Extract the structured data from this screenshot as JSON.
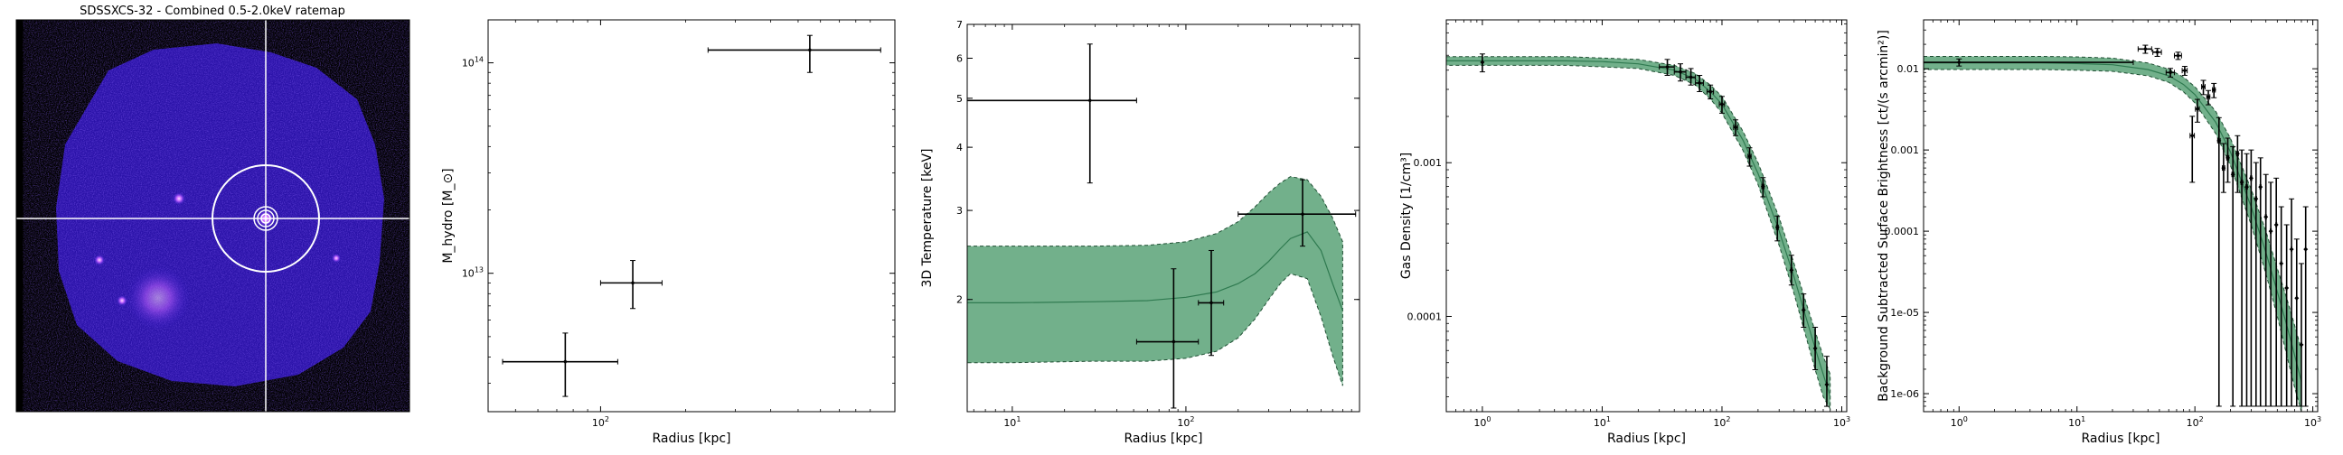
{
  "ratemap": {
    "title": "SDSSXCS-32 - Combined 0.5-2.0keV ratemap",
    "colors": {
      "background": "#000000",
      "emission": "#3a1fd6",
      "crosshair": "#ffffff"
    }
  },
  "chart_data": [
    {
      "type": "scatter",
      "title": "",
      "xlabel": "Radius [kpc]",
      "ylabel": "M_hydro [M_⊙]",
      "xscale": "log",
      "yscale": "log",
      "xlim": [
        40,
        1100
      ],
      "ylim": [
        2200000000000.0,
        160000000000000.0
      ],
      "x_ticks": [
        {
          "v": 100,
          "label": "10^2"
        }
      ],
      "y_ticks": [
        {
          "v": 10000000000000.0,
          "label": "10^13"
        },
        {
          "v": 100000000000000.0,
          "label": "10^14"
        }
      ],
      "points": [
        {
          "x": 75,
          "xlo": 45,
          "xhi": 115,
          "y": 3800000000000.0,
          "ylo": 2600000000000.0,
          "yhi": 5200000000000.0
        },
        {
          "x": 130,
          "xlo": 100,
          "xhi": 165,
          "y": 9000000000000.0,
          "ylo": 6800000000000.0,
          "yhi": 11500000000000.0
        },
        {
          "x": 550,
          "xlo": 240,
          "xhi": 980,
          "y": 115000000000000.0,
          "ylo": 90000000000000.0,
          "yhi": 135000000000000.0
        }
      ]
    },
    {
      "type": "scatter",
      "title": "",
      "xlabel": "Radius [kpc]",
      "ylabel": "3D Temperature [keV]",
      "xscale": "log",
      "yscale": "log",
      "xlim": [
        5.5,
        1000
      ],
      "ylim": [
        1.2,
        7
      ],
      "x_ticks": [
        {
          "v": 10,
          "label": "10^1"
        },
        {
          "v": 100,
          "label": "10^2"
        }
      ],
      "y_ticks": [
        {
          "v": 2,
          "label": "2"
        },
        {
          "v": 3,
          "label": "3"
        },
        {
          "v": 4,
          "label": "4"
        },
        {
          "v": 5,
          "label": "5"
        },
        {
          "v": 6,
          "label": "6"
        },
        {
          "v": 7,
          "label": "7"
        }
      ],
      "model": {
        "color": "#6aac85",
        "x": [
          5.5,
          10,
          30,
          60,
          100,
          150,
          200,
          250,
          300,
          350,
          400,
          500,
          600,
          700,
          800
        ],
        "y": [
          1.97,
          1.97,
          1.98,
          1.99,
          2.02,
          2.07,
          2.15,
          2.25,
          2.38,
          2.52,
          2.64,
          2.72,
          2.5,
          2.15,
          1.9
        ],
        "ylo": [
          1.5,
          1.5,
          1.51,
          1.51,
          1.53,
          1.58,
          1.68,
          1.83,
          2.0,
          2.15,
          2.25,
          2.2,
          1.85,
          1.55,
          1.35
        ],
        "yhi": [
          2.55,
          2.55,
          2.55,
          2.56,
          2.6,
          2.7,
          2.85,
          3.05,
          3.25,
          3.4,
          3.5,
          3.45,
          3.2,
          2.9,
          2.6
        ]
      },
      "points": [
        {
          "x": 28,
          "xlo": 5.5,
          "xhi": 52,
          "y": 4.95,
          "ylo": 3.4,
          "yhi": 6.4
        },
        {
          "x": 85,
          "xlo": 52,
          "xhi": 118,
          "y": 1.65,
          "ylo": 1.22,
          "yhi": 2.3
        },
        {
          "x": 140,
          "xlo": 118,
          "xhi": 165,
          "y": 1.97,
          "ylo": 1.55,
          "yhi": 2.5
        },
        {
          "x": 470,
          "xlo": 200,
          "xhi": 950,
          "y": 2.95,
          "ylo": 2.55,
          "yhi": 3.45
        }
      ]
    },
    {
      "type": "scatter",
      "title": "",
      "xlabel": "Radius [kpc]",
      "ylabel": "Gas Density [1/cm³]",
      "xscale": "log",
      "yscale": "log",
      "xlim": [
        0.5,
        1100
      ],
      "ylim": [
        2.4e-05,
        0.0085
      ],
      "x_ticks": [
        {
          "v": 1,
          "label": "10^0"
        },
        {
          "v": 10,
          "label": "10^1"
        },
        {
          "v": 100,
          "label": "10^2"
        },
        {
          "v": 1000,
          "label": "10^3"
        }
      ],
      "y_ticks": [
        {
          "v": 0.0001,
          "label": "0.0001"
        },
        {
          "v": 0.001,
          "label": "0.001"
        }
      ],
      "model": {
        "color": "#6aac85",
        "x": [
          0.5,
          1,
          5,
          10,
          20,
          40,
          60,
          80,
          100,
          150,
          200,
          300,
          400,
          500,
          600,
          700,
          800
        ],
        "y": [
          0.0046,
          0.0046,
          0.0046,
          0.00455,
          0.0044,
          0.004,
          0.0035,
          0.0029,
          0.0024,
          0.0014,
          0.00085,
          0.00036,
          0.00018,
          0.0001,
          6.2e-05,
          4.2e-05,
          3e-05
        ],
        "ylo": [
          0.0043,
          0.0043,
          0.0043,
          0.0042,
          0.0041,
          0.0037,
          0.0032,
          0.0026,
          0.0021,
          0.0012,
          0.00072,
          0.00029,
          0.00014,
          7.5e-05,
          4.5e-05,
          3e-05,
          2.5e-05
        ],
        "yhi": [
          0.0049,
          0.0049,
          0.0049,
          0.0048,
          0.0047,
          0.0043,
          0.0038,
          0.0032,
          0.0027,
          0.0016,
          0.001,
          0.00044,
          0.00022,
          0.000125,
          8e-05,
          5.5e-05,
          4.2e-05
        ]
      },
      "points": [
        {
          "x": 1,
          "xlo": 1,
          "xhi": 1,
          "y": 0.0045,
          "ylo": 0.0039,
          "yhi": 0.0051
        },
        {
          "x": 35,
          "xlo": 30,
          "xhi": 40,
          "y": 0.0042,
          "ylo": 0.0037,
          "yhi": 0.0047
        },
        {
          "x": 45,
          "xlo": 40,
          "xhi": 50,
          "y": 0.0039,
          "ylo": 0.0034,
          "yhi": 0.0044
        },
        {
          "x": 55,
          "xlo": 50,
          "xhi": 60,
          "y": 0.0036,
          "ylo": 0.0032,
          "yhi": 0.0041
        },
        {
          "x": 65,
          "xlo": 60,
          "xhi": 70,
          "y": 0.0033,
          "ylo": 0.0029,
          "yhi": 0.0037
        },
        {
          "x": 80,
          "xlo": 75,
          "xhi": 85,
          "y": 0.0029,
          "ylo": 0.0026,
          "yhi": 0.0032
        },
        {
          "x": 100,
          "xlo": 95,
          "xhi": 105,
          "y": 0.0024,
          "ylo": 0.0021,
          "yhi": 0.0027
        },
        {
          "x": 130,
          "xlo": 125,
          "xhi": 135,
          "y": 0.0017,
          "ylo": 0.0015,
          "yhi": 0.0019
        },
        {
          "x": 170,
          "xlo": 165,
          "xhi": 175,
          "y": 0.0011,
          "ylo": 0.00095,
          "yhi": 0.00125
        },
        {
          "x": 220,
          "xlo": 215,
          "xhi": 225,
          "y": 0.0007,
          "ylo": 0.0006,
          "yhi": 0.0008
        },
        {
          "x": 290,
          "xlo": 285,
          "xhi": 295,
          "y": 0.00038,
          "ylo": 0.00031,
          "yhi": 0.00045
        },
        {
          "x": 380,
          "xlo": 375,
          "xhi": 385,
          "y": 0.0002,
          "ylo": 0.00016,
          "yhi": 0.00025
        },
        {
          "x": 480,
          "xlo": 475,
          "xhi": 485,
          "y": 0.00011,
          "ylo": 8.5e-05,
          "yhi": 0.00014
        },
        {
          "x": 600,
          "xlo": 595,
          "xhi": 605,
          "y": 6.2e-05,
          "ylo": 4.5e-05,
          "yhi": 8.5e-05
        },
        {
          "x": 750,
          "xlo": 745,
          "xhi": 755,
          "y": 3.6e-05,
          "ylo": 2.6e-05,
          "yhi": 5.5e-05
        }
      ]
    },
    {
      "type": "scatter",
      "title": "",
      "xlabel": "Radius [kpc]",
      "ylabel": "Background Subtracted Surface Brightness [ct/(s arcmin²)]",
      "xscale": "log",
      "yscale": "log",
      "xlim": [
        0.5,
        1100
      ],
      "ylim": [
        6e-07,
        0.04
      ],
      "x_ticks": [
        {
          "v": 1,
          "label": "10^0"
        },
        {
          "v": 10,
          "label": "10^1"
        },
        {
          "v": 100,
          "label": "10^2"
        },
        {
          "v": 1000,
          "label": "10^3"
        }
      ],
      "y_ticks": [
        {
          "v": 1e-06,
          "label": "1e-06"
        },
        {
          "v": 1e-05,
          "label": "1e-05"
        },
        {
          "v": 0.0001,
          "label": "0.0001"
        },
        {
          "v": 0.001,
          "label": "0.001"
        },
        {
          "v": 0.01,
          "label": "0.01"
        }
      ],
      "model": {
        "color": "#6aac85",
        "x": [
          0.5,
          1,
          5,
          10,
          20,
          40,
          60,
          80,
          100,
          150,
          200,
          300,
          400,
          500,
          600,
          700,
          800
        ],
        "y": [
          0.0118,
          0.0118,
          0.0118,
          0.0116,
          0.0112,
          0.0098,
          0.0082,
          0.0064,
          0.0048,
          0.0022,
          0.00095,
          0.0002,
          5.5e-05,
          1.8e-05,
          7e-06,
          3e-06,
          1.4e-06
        ],
        "ylo": [
          0.0098,
          0.0098,
          0.0098,
          0.0096,
          0.0093,
          0.0082,
          0.0068,
          0.0052,
          0.0038,
          0.0016,
          0.00065,
          0.00012,
          3e-05,
          9e-06,
          3e-06,
          1.2e-06,
          6e-07
        ],
        "yhi": [
          0.0142,
          0.0142,
          0.0142,
          0.014,
          0.0135,
          0.0118,
          0.0099,
          0.0079,
          0.006,
          0.003,
          0.0014,
          0.00033,
          0.0001,
          3.5e-05,
          1.5e-05,
          7e-06,
          3.5e-06
        ]
      },
      "points": [
        {
          "x": 1,
          "xlo": 0.5,
          "xhi": 30,
          "y": 0.012,
          "ylo": 0.0108,
          "yhi": 0.0132
        },
        {
          "x": 38,
          "xlo": 33,
          "xhi": 43,
          "y": 0.0175,
          "ylo": 0.0155,
          "yhi": 0.0195
        },
        {
          "x": 48,
          "xlo": 44,
          "xhi": 52,
          "y": 0.016,
          "ylo": 0.0142,
          "yhi": 0.0178
        },
        {
          "x": 62,
          "xlo": 57,
          "xhi": 67,
          "y": 0.009,
          "ylo": 0.0079,
          "yhi": 0.0101
        },
        {
          "x": 72,
          "xlo": 67,
          "xhi": 77,
          "y": 0.0145,
          "ylo": 0.013,
          "yhi": 0.016
        },
        {
          "x": 82,
          "xlo": 78,
          "xhi": 86,
          "y": 0.0095,
          "ylo": 0.0083,
          "yhi": 0.0107
        },
        {
          "x": 95,
          "xlo": 91,
          "xhi": 99,
          "y": 0.0015,
          "ylo": 0.0004,
          "yhi": 0.0026
        },
        {
          "x": 105,
          "xlo": 101,
          "xhi": 109,
          "y": 0.0032,
          "ylo": 0.0022,
          "yhi": 0.0042
        },
        {
          "x": 118,
          "xlo": 114,
          "xhi": 122,
          "y": 0.006,
          "ylo": 0.0048,
          "yhi": 0.0072
        },
        {
          "x": 130,
          "xlo": 126,
          "xhi": 134,
          "y": 0.0045,
          "ylo": 0.0036,
          "yhi": 0.0054
        },
        {
          "x": 145,
          "xlo": 141,
          "xhi": 149,
          "y": 0.0055,
          "ylo": 0.0044,
          "yhi": 0.0066
        },
        {
          "x": 160,
          "xlo": 156,
          "xhi": 164,
          "y": 0.0013,
          "ylo": 7e-07,
          "yhi": 0.0025
        },
        {
          "x": 175,
          "xlo": 171,
          "xhi": 179,
          "y": 0.0006,
          "ylo": 0.0003,
          "yhi": 0.0012
        },
        {
          "x": 190,
          "xlo": 186,
          "xhi": 194,
          "y": 0.0008,
          "ylo": 0.0004,
          "yhi": 0.0014
        },
        {
          "x": 210,
          "xlo": 206,
          "xhi": 214,
          "y": 0.0005,
          "ylo": 7e-07,
          "yhi": 0.0011
        },
        {
          "x": 230,
          "xlo": 226,
          "xhi": 234,
          "y": 0.0009,
          "ylo": 0.0003,
          "yhi": 0.0015
        },
        {
          "x": 250,
          "xlo": 246,
          "xhi": 254,
          "y": 0.0004,
          "ylo": 7e-07,
          "yhi": 0.001
        },
        {
          "x": 275,
          "xlo": 271,
          "xhi": 279,
          "y": 0.00035,
          "ylo": 7e-07,
          "yhi": 0.0009
        },
        {
          "x": 300,
          "xlo": 296,
          "xhi": 304,
          "y": 0.00045,
          "ylo": 7e-07,
          "yhi": 0.001
        },
        {
          "x": 330,
          "xlo": 326,
          "xhi": 334,
          "y": 0.00025,
          "ylo": 7e-07,
          "yhi": 0.0007
        },
        {
          "x": 360,
          "xlo": 356,
          "xhi": 364,
          "y": 0.00035,
          "ylo": 7e-07,
          "yhi": 0.0008
        },
        {
          "x": 400,
          "xlo": 396,
          "xhi": 404,
          "y": 0.00015,
          "ylo": 7e-07,
          "yhi": 0.0005
        },
        {
          "x": 440,
          "xlo": 436,
          "xhi": 444,
          "y": 0.0001,
          "ylo": 7e-07,
          "yhi": 0.0004
        },
        {
          "x": 490,
          "xlo": 486,
          "xhi": 494,
          "y": 0.00012,
          "ylo": 7e-07,
          "yhi": 0.00045
        },
        {
          "x": 540,
          "xlo": 536,
          "xhi": 544,
          "y": 4e-05,
          "ylo": 7e-07,
          "yhi": 0.0002
        },
        {
          "x": 600,
          "xlo": 596,
          "xhi": 604,
          "y": 2e-05,
          "ylo": 7e-07,
          "yhi": 0.00012
        },
        {
          "x": 660,
          "xlo": 656,
          "xhi": 664,
          "y": 6e-05,
          "ylo": 7e-07,
          "yhi": 0.00025
        },
        {
          "x": 730,
          "xlo": 726,
          "xhi": 734,
          "y": 1.5e-05,
          "ylo": 7e-07,
          "yhi": 8e-05
        },
        {
          "x": 800,
          "xlo": 796,
          "xhi": 804,
          "y": 4e-06,
          "ylo": 7e-07,
          "yhi": 4e-05
        },
        {
          "x": 870,
          "xlo": 866,
          "xhi": 874,
          "y": 6e-05,
          "ylo": 7e-07,
          "yhi": 0.0002
        }
      ]
    }
  ]
}
